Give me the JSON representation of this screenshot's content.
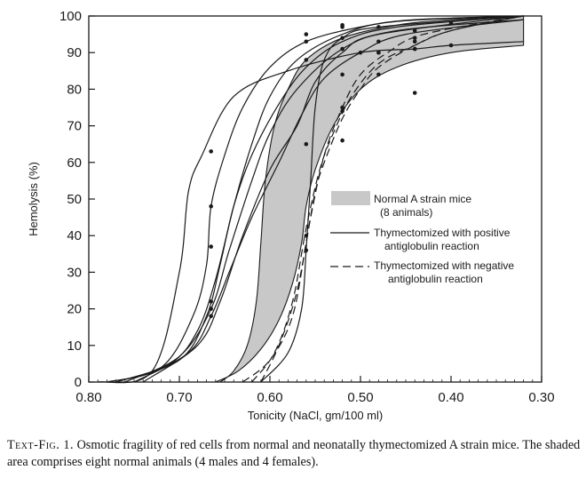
{
  "chart_data": {
    "type": "line",
    "xlabel": "Tonicity (NaCl, gm/100 ml)",
    "ylabel": "Hemolysis (%)",
    "xlim": [
      0.8,
      0.3
    ],
    "ylim": [
      0,
      100
    ],
    "x_reversed": true,
    "xticks": [
      "0.80",
      "0.70",
      "0.60",
      "0.50",
      "0.40",
      "0.30"
    ],
    "yticks": [
      "0",
      "10",
      "20",
      "30",
      "40",
      "50",
      "60",
      "70",
      "80",
      "90",
      "100"
    ],
    "grid": false,
    "legend_position": "right-middle",
    "legend": [
      {
        "label_lines": [
          "Normal A strain mice",
          "(8 animals)"
        ],
        "style": "shaded"
      },
      {
        "label_lines": [
          "Thymectomized with positive",
          "antiglobulin reaction"
        ],
        "style": "solid"
      },
      {
        "label_lines": [
          "Thymectomized with negative",
          "antiglobulin reaction"
        ],
        "style": "dashed"
      }
    ],
    "normal_band": {
      "upper": [
        [
          0.655,
          0
        ],
        [
          0.64,
          3
        ],
        [
          0.625,
          10
        ],
        [
          0.615,
          22
        ],
        [
          0.61,
          38
        ],
        [
          0.605,
          55
        ],
        [
          0.595,
          70
        ],
        [
          0.58,
          80
        ],
        [
          0.56,
          88
        ],
        [
          0.52,
          94
        ],
        [
          0.46,
          97.5
        ],
        [
          0.4,
          99
        ],
        [
          0.32,
          100
        ]
      ],
      "lower": [
        [
          0.32,
          92
        ],
        [
          0.4,
          90
        ],
        [
          0.46,
          86
        ],
        [
          0.5,
          80
        ],
        [
          0.53,
          70
        ],
        [
          0.55,
          58
        ],
        [
          0.56,
          48
        ],
        [
          0.565,
          38
        ],
        [
          0.575,
          27
        ],
        [
          0.59,
          17
        ],
        [
          0.61,
          9
        ],
        [
          0.635,
          3
        ],
        [
          0.66,
          0
        ]
      ]
    },
    "series": [
      {
        "style": "solid",
        "points": [
          [
            0.79,
            0
          ],
          [
            0.73,
            3
          ],
          [
            0.7,
            30
          ],
          [
            0.69,
            52
          ],
          [
            0.675,
            62
          ],
          [
            0.64,
            78
          ],
          [
            0.58,
            85
          ],
          [
            0.5,
            90
          ],
          [
            0.44,
            91
          ],
          [
            0.4,
            92
          ],
          [
            0.32,
            93
          ]
        ],
        "markers": [
          [
            0.665,
            63
          ],
          [
            0.5,
            90
          ],
          [
            0.44,
            91
          ],
          [
            0.4,
            92
          ]
        ]
      },
      {
        "style": "solid",
        "points": [
          [
            0.78,
            0
          ],
          [
            0.72,
            4
          ],
          [
            0.685,
            18
          ],
          [
            0.67,
            32
          ],
          [
            0.665,
            48
          ],
          [
            0.65,
            62
          ],
          [
            0.63,
            75
          ],
          [
            0.6,
            86
          ],
          [
            0.56,
            93
          ],
          [
            0.5,
            97
          ],
          [
            0.44,
            99
          ],
          [
            0.32,
            100
          ]
        ],
        "markers": [
          [
            0.665,
            48
          ],
          [
            0.56,
            95
          ],
          [
            0.52,
            97
          ]
        ]
      },
      {
        "style": "solid",
        "points": [
          [
            0.77,
            0
          ],
          [
            0.71,
            5
          ],
          [
            0.68,
            14
          ],
          [
            0.66,
            28
          ],
          [
            0.64,
            48
          ],
          [
            0.62,
            65
          ],
          [
            0.6,
            78
          ],
          [
            0.57,
            88
          ],
          [
            0.52,
            95
          ],
          [
            0.46,
            98.5
          ],
          [
            0.32,
            100
          ]
        ],
        "markers": [
          [
            0.665,
            37
          ],
          [
            0.56,
            93
          ],
          [
            0.52,
            97.5
          ]
        ]
      },
      {
        "style": "solid",
        "points": [
          [
            0.77,
            0
          ],
          [
            0.7,
            6
          ],
          [
            0.67,
            18
          ],
          [
            0.655,
            32
          ],
          [
            0.64,
            48
          ],
          [
            0.62,
            62
          ],
          [
            0.59,
            76
          ],
          [
            0.56,
            86
          ],
          [
            0.52,
            93
          ],
          [
            0.46,
            97
          ],
          [
            0.32,
            100
          ]
        ],
        "markers": [
          [
            0.665,
            22
          ],
          [
            0.56,
            88
          ],
          [
            0.48,
            97
          ]
        ]
      },
      {
        "style": "solid",
        "points": [
          [
            0.76,
            0
          ],
          [
            0.7,
            7
          ],
          [
            0.665,
            20
          ],
          [
            0.645,
            36
          ],
          [
            0.62,
            55
          ],
          [
            0.6,
            68
          ],
          [
            0.57,
            80
          ],
          [
            0.52,
            91
          ],
          [
            0.46,
            96
          ],
          [
            0.32,
            99
          ]
        ],
        "markers": [
          [
            0.665,
            20
          ],
          [
            0.52,
            91
          ],
          [
            0.44,
            94
          ]
        ]
      },
      {
        "style": "solid",
        "points": [
          [
            0.75,
            0
          ],
          [
            0.69,
            8
          ],
          [
            0.665,
            18
          ],
          [
            0.645,
            30
          ],
          [
            0.62,
            45
          ],
          [
            0.59,
            60
          ],
          [
            0.565,
            73
          ],
          [
            0.54,
            83
          ],
          [
            0.5,
            90
          ],
          [
            0.45,
            95
          ],
          [
            0.32,
            99
          ]
        ],
        "markers": [
          [
            0.665,
            18
          ],
          [
            0.52,
            84
          ],
          [
            0.48,
            90
          ]
        ]
      },
      {
        "style": "solid",
        "points": [
          [
            0.74,
            0
          ],
          [
            0.68,
            10
          ],
          [
            0.655,
            22
          ],
          [
            0.63,
            40
          ],
          [
            0.6,
            58
          ],
          [
            0.57,
            70
          ],
          [
            0.55,
            82
          ],
          [
            0.52,
            90
          ],
          [
            0.48,
            95
          ],
          [
            0.32,
            100
          ]
        ],
        "markers": [
          [
            0.48,
            93
          ],
          [
            0.44,
            96
          ]
        ]
      },
      {
        "style": "solid",
        "points": [
          [
            0.61,
            0
          ],
          [
            0.58,
            8
          ],
          [
            0.565,
            20
          ],
          [
            0.56,
            36
          ],
          [
            0.555,
            55
          ],
          [
            0.55,
            75
          ],
          [
            0.54,
            88
          ],
          [
            0.52,
            94
          ],
          [
            0.48,
            97
          ],
          [
            0.32,
            100
          ]
        ],
        "markers": [
          [
            0.56,
            36
          ],
          [
            0.56,
            65
          ],
          [
            0.52,
            94
          ]
        ]
      },
      {
        "style": "dashed",
        "points": [
          [
            0.63,
            0
          ],
          [
            0.6,
            6
          ],
          [
            0.575,
            18
          ],
          [
            0.56,
            38
          ],
          [
            0.55,
            52
          ],
          [
            0.54,
            60
          ],
          [
            0.52,
            72
          ],
          [
            0.5,
            80
          ],
          [
            0.48,
            86
          ],
          [
            0.44,
            92
          ],
          [
            0.4,
            96
          ],
          [
            0.32,
            100
          ]
        ],
        "markers": [
          [
            0.56,
            40
          ],
          [
            0.52,
            66
          ],
          [
            0.48,
            84
          ],
          [
            0.44,
            79
          ]
        ]
      },
      {
        "style": "dashed",
        "points": [
          [
            0.62,
            0
          ],
          [
            0.595,
            8
          ],
          [
            0.575,
            22
          ],
          [
            0.56,
            42
          ],
          [
            0.545,
            58
          ],
          [
            0.53,
            68
          ],
          [
            0.51,
            78
          ],
          [
            0.48,
            87
          ],
          [
            0.44,
            92
          ],
          [
            0.4,
            96
          ],
          [
            0.32,
            100
          ]
        ],
        "markers": [
          [
            0.52,
            75
          ],
          [
            0.48,
            90
          ],
          [
            0.44,
            93
          ]
        ]
      },
      {
        "style": "dashed",
        "points": [
          [
            0.61,
            0
          ],
          [
            0.59,
            10
          ],
          [
            0.57,
            25
          ],
          [
            0.555,
            45
          ],
          [
            0.54,
            62
          ],
          [
            0.52,
            75
          ],
          [
            0.5,
            84
          ],
          [
            0.47,
            90
          ],
          [
            0.43,
            95
          ],
          [
            0.32,
            100
          ]
        ],
        "markers": [
          [
            0.52,
            74
          ],
          [
            0.44,
            91
          ],
          [
            0.4,
            98
          ]
        ]
      }
    ]
  },
  "caption": {
    "label": "Text-Fig. 1.",
    "text": "Osmotic fragility of red cells from normal and neonatally thymectomized A strain mice. The shaded area comprises eight normal animals (4 males and 4 females)."
  },
  "colors": {
    "band_fill": "#c8c8c8",
    "ink": "#1a1a1a",
    "background": "#ffffff"
  }
}
